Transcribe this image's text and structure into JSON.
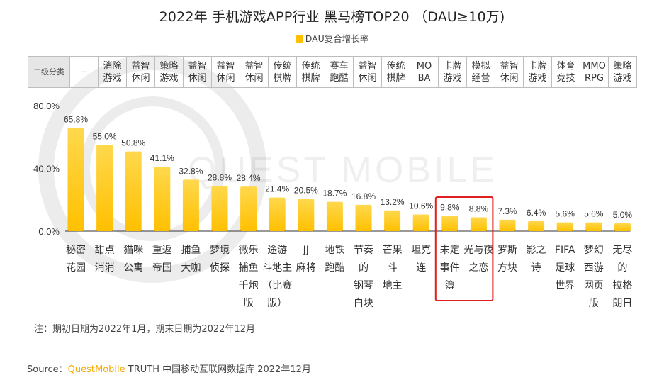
{
  "title": "2022年 手机游戏APP行业 黑马榜TOP20 （DAU≥10万)",
  "legend_label": "DAU复合增长率",
  "table_header": "二级分类",
  "watermark": "QUEST MOBILE",
  "note": "注：期初日期为2022年1月，期末日期为2022年12月",
  "source": {
    "prefix": "Source：",
    "brand": "QuestMobile",
    "rest": " TRUTH 中国移动互联网数据库 2022年12月"
  },
  "colors": {
    "bar": "#FFC000",
    "bar_top": "#FFD84D",
    "highlight_box": "#E02020",
    "axis": "#333333"
  },
  "chart_data": {
    "type": "bar",
    "title": "2022年 手机游戏APP行业 黑马榜TOP20 （DAU≥10万)",
    "series": [
      {
        "name": "DAU复合增长率"
      }
    ],
    "categories": [
      "秘密花园",
      "甜点消消",
      "猫咪公寓",
      "重返帝国",
      "捕鱼大咖",
      "梦境侦探",
      "微乐捕鱼千炮版",
      "途游斗地主(比赛版)",
      "JJ麻将",
      "地铁跑酷",
      "节奏的钢琴白块",
      "芒果斗地主",
      "坦克连",
      "未定事件簿",
      "光与夜之恋",
      "罗斯方块",
      "影之诗",
      "FIFA足球世界",
      "梦幻西游网页版",
      "无尽的拉格朗日"
    ],
    "category_display": [
      "秘密\n花园",
      "甜点\n消消",
      "猫咪\n公寓",
      "重返\n帝国",
      "捕鱼\n大咖",
      "梦境\n侦探",
      "微乐\n捕鱼\n千炮\n版",
      "途游\n斗地主\n（比赛\n版）",
      "JJ\n麻将",
      "地铁\n跑酷",
      "节奏\n的\n钢琴\n白块",
      "芒果\n斗\n地主",
      "坦克\n连",
      "未定\n事件\n簿",
      "光与夜\n之恋",
      "罗斯\n方块",
      "影之\n诗",
      "FIFA\n足球\n世界",
      "梦幻\n西游\n网页\n版",
      "无尽\n的\n拉格\n朗日"
    ],
    "subcategories": [
      "--",
      "消除\n游戏",
      "益智\n休闲",
      "策略\n游戏",
      "益智\n休闲",
      "益智\n休闲",
      "益智\n休闲",
      "传统\n棋牌",
      "传统\n棋牌",
      "赛车\n跑酷",
      "益智\n休闲",
      "传统\n棋牌",
      "MO\nBA",
      "卡牌\n游戏",
      "模拟\n经营",
      "益智\n休闲",
      "卡牌\n游戏",
      "体育\n竞技",
      "MMO\nRPG",
      "策略\n游戏"
    ],
    "values": [
      65.8,
      55.0,
      50.8,
      41.1,
      32.8,
      28.8,
      28.4,
      21.4,
      20.5,
      18.7,
      16.8,
      13.2,
      10.6,
      9.8,
      8.8,
      7.3,
      6.4,
      5.6,
      5.6,
      5.0
    ],
    "value_labels": [
      "65.8%",
      "55.0%",
      "50.8%",
      "41.1%",
      "32.8%",
      "28.8%",
      "28.4%",
      "21.4%",
      "20.5%",
      "18.7%",
      "16.8%",
      "13.2%",
      "10.6%",
      "9.8%",
      "8.8%",
      "7.3%",
      "6.4%",
      "5.6%",
      "5.6%",
      "5.0%"
    ],
    "y_ticks": [
      "80.0%",
      "40.0%",
      "0.0%"
    ],
    "y_tick_values": [
      80,
      40,
      0
    ],
    "ylim": [
      0,
      80
    ],
    "highlighted": [
      "未定事件簿",
      "光与夜之恋"
    ],
    "grid": false,
    "legend_position": "top-center"
  }
}
